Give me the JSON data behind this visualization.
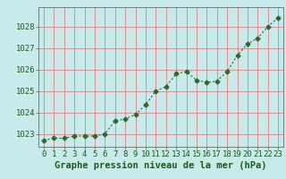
{
  "x": [
    0,
    1,
    2,
    3,
    4,
    5,
    6,
    7,
    8,
    9,
    10,
    11,
    12,
    13,
    14,
    15,
    16,
    17,
    18,
    19,
    20,
    21,
    22,
    23
  ],
  "y": [
    1022.7,
    1022.8,
    1022.8,
    1022.9,
    1022.9,
    1022.9,
    1023.0,
    1023.6,
    1023.7,
    1023.9,
    1024.35,
    1025.0,
    1025.2,
    1025.8,
    1025.9,
    1025.5,
    1025.4,
    1025.45,
    1025.9,
    1026.65,
    1027.2,
    1027.45,
    1028.0,
    1028.4
  ],
  "line_color": "#2d6a2d",
  "marker": "D",
  "marker_size": 2.5,
  "bg_color": "#c8eaea",
  "grid_color": "#e08080",
  "xlabel": "Graphe pression niveau de la mer (hPa)",
  "xlabel_color": "#1a5c1a",
  "tick_color": "#1a5c1a",
  "ylim": [
    1022.4,
    1028.9
  ],
  "yticks": [
    1023,
    1024,
    1025,
    1026,
    1027,
    1028
  ],
  "xticks": [
    0,
    1,
    2,
    3,
    4,
    5,
    6,
    7,
    8,
    9,
    10,
    11,
    12,
    13,
    14,
    15,
    16,
    17,
    18,
    19,
    20,
    21,
    22,
    23
  ],
  "tick_fontsize": 6.5,
  "xlabel_fontsize": 7.5
}
